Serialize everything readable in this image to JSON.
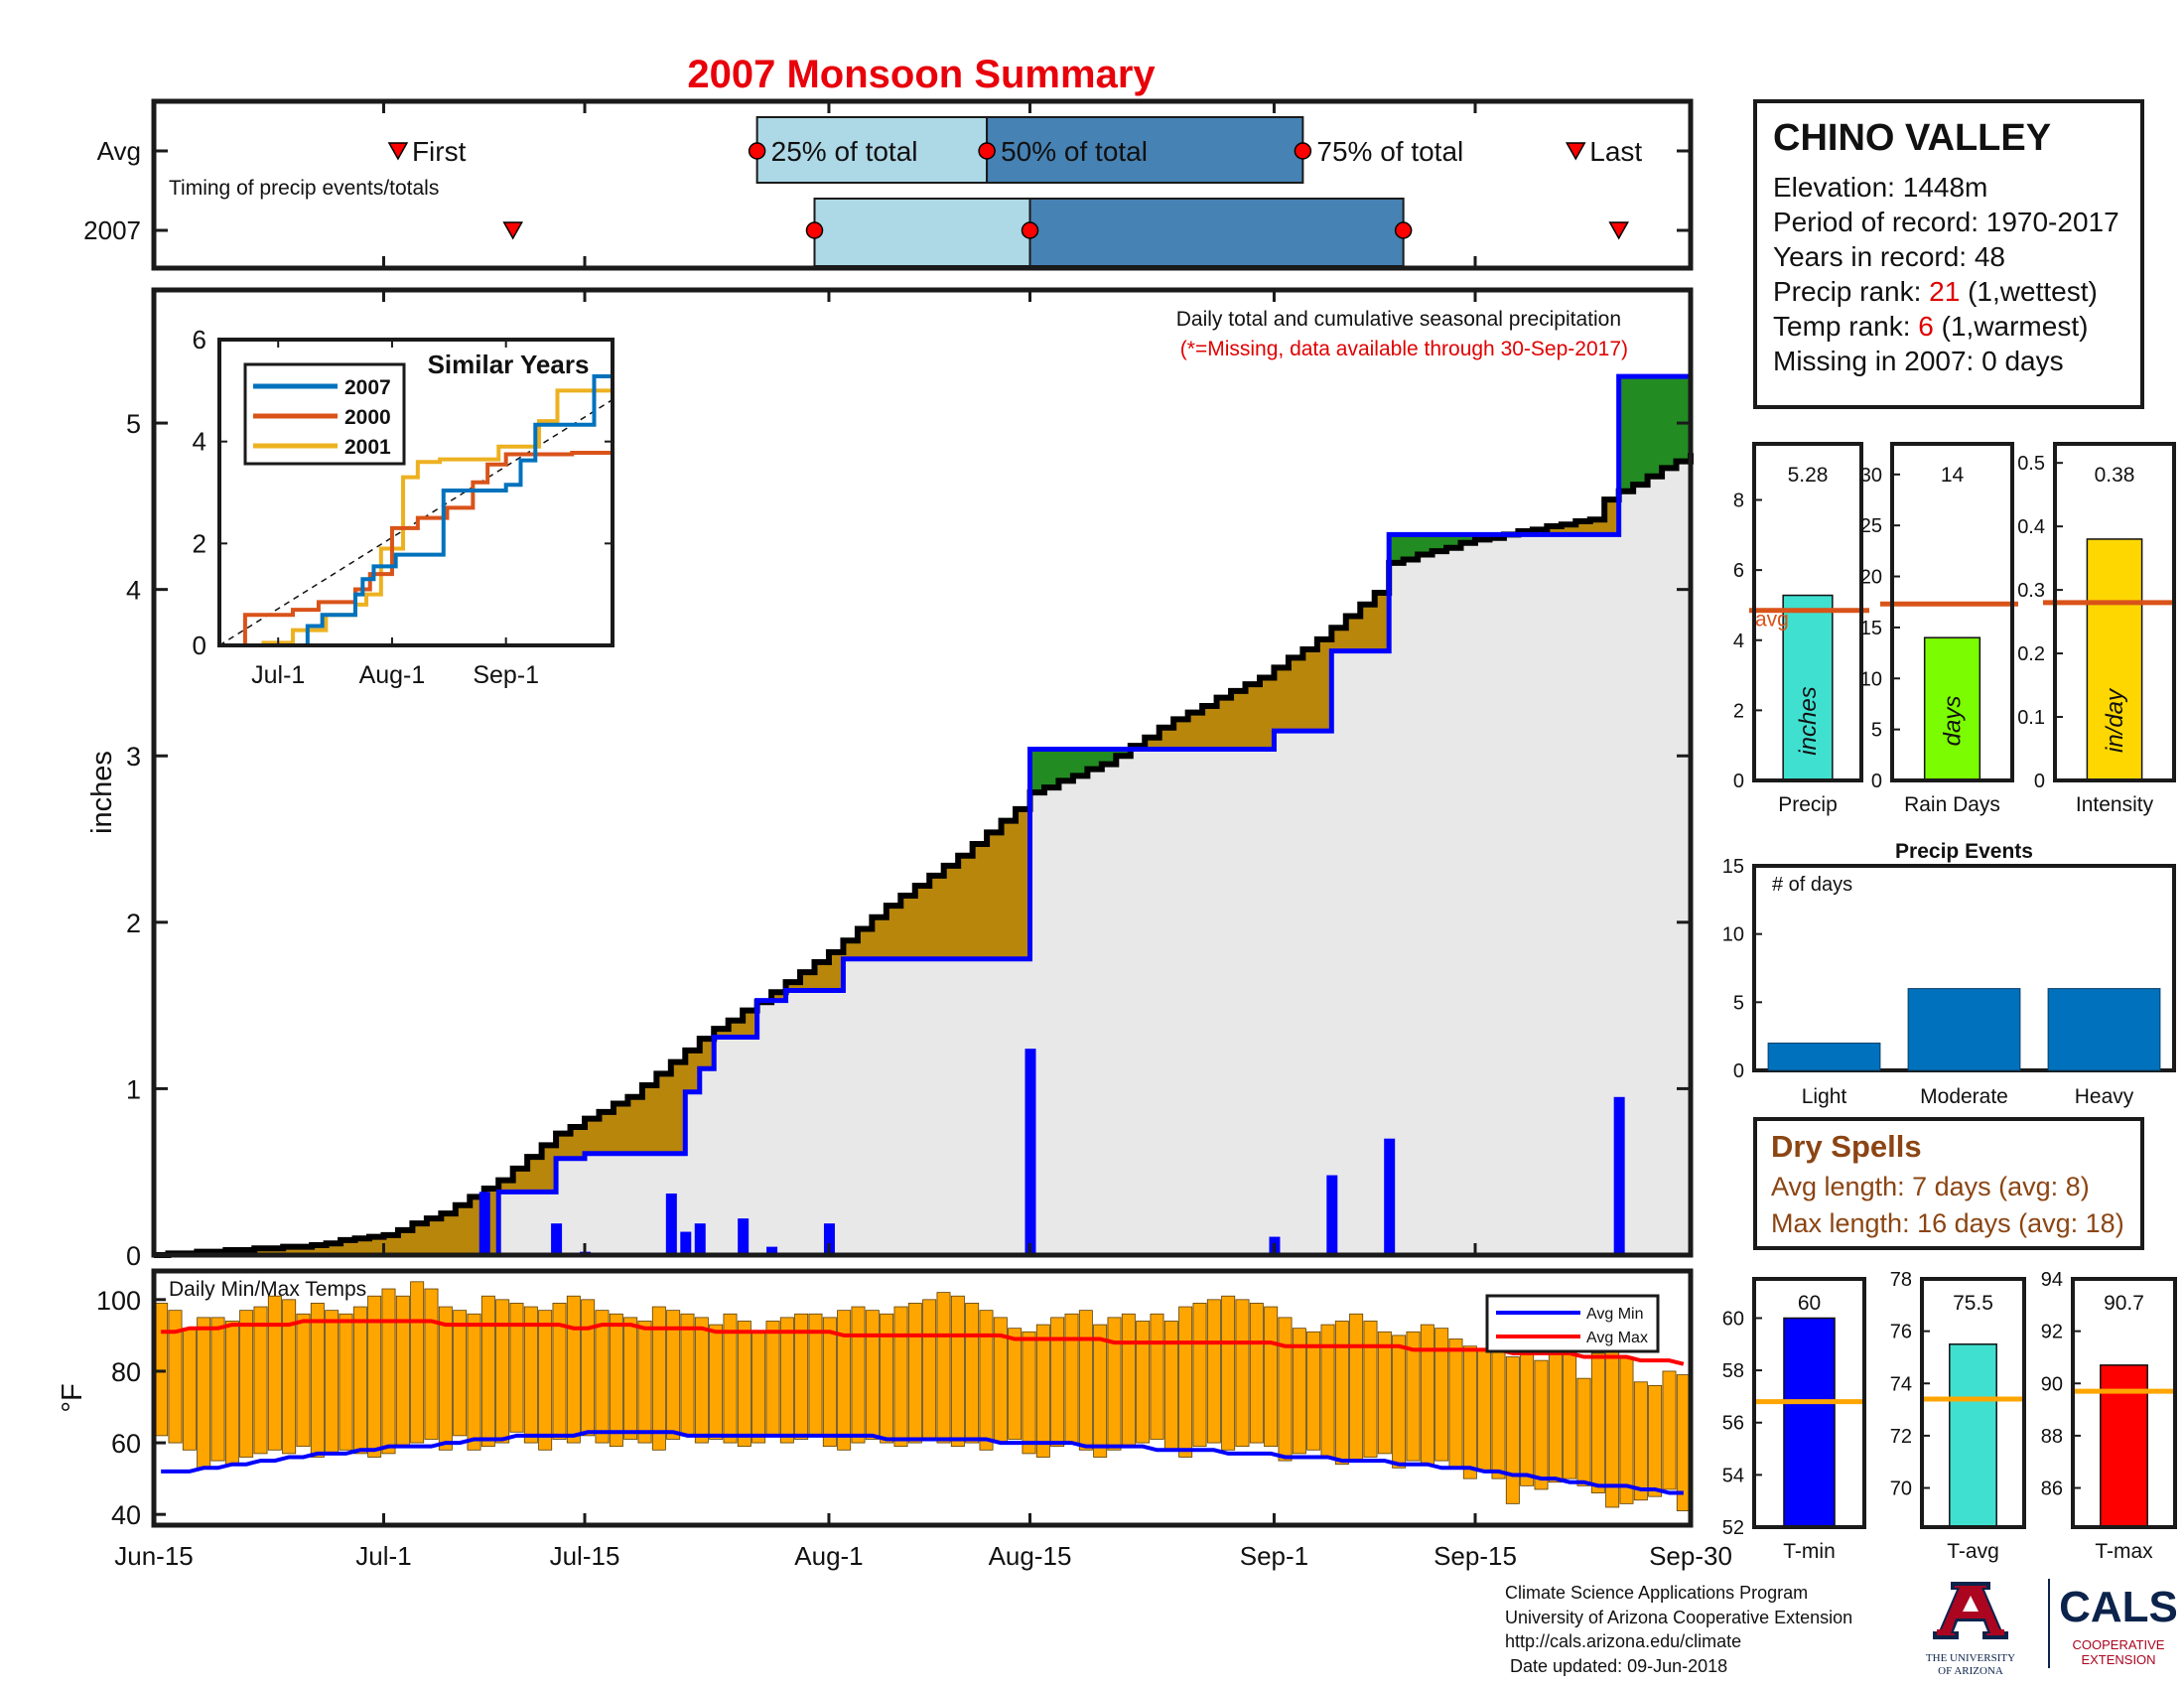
{
  "title": "2007 Monsoon Summary",
  "station": {
    "name": "CHINO VALLEY",
    "elevation": "Elevation: 1448m",
    "period": "Period of record: 1970-2017",
    "years": "Years in record: 48",
    "precip_rank_label": "Precip rank: ",
    "precip_rank_value": "21",
    "precip_rank_note": " (1,wettest)",
    "temp_rank_label": "Temp rank: ",
    "temp_rank_value": "6",
    "temp_rank_note": " (1,warmest)",
    "missing": "Missing in 2007: 0 days"
  },
  "dry_spells": {
    "title": "Dry Spells",
    "avg": "Avg length: 7 days (avg: 8)",
    "max": "Max length: 16 days (avg: 18)"
  },
  "footer": {
    "line1": "Climate Science Applications Program",
    "line2": "University of Arizona Cooperative Extension",
    "line3": "http://cals.arizona.edu/climate",
    "line4": " Date updated: 09-Jun-2018"
  },
  "logos": {
    "ua_line1": "THE UNIVERSITY",
    "ua_line2": "OF ARIZONA",
    "cals": "CALS",
    "cals_line1": "COOPERATIVE",
    "cals_line2": "EXTENSION"
  },
  "colors": {
    "title": "#e8000b",
    "cum2007": "#0000ff",
    "avg_cum": "#000000",
    "above_fill": "#228b22",
    "below_fill": "#b8860b",
    "daily_bar": "#0000ff",
    "temp_bar": "#ffa500",
    "avg_min": "#0000ff",
    "avg_max": "#ff0000",
    "series_2007": "#0072bd",
    "series_2000": "#d95319",
    "series_2001": "#edb120",
    "precip_bar": "#40e0d0",
    "raindays_bar": "#7cfc00",
    "intensity_bar": "#ffd700",
    "avg_line": "#d95319",
    "events_bar": "#0072bd",
    "tmin_bar": "#0000ff",
    "tavg_bar": "#40e0d0",
    "tmax_bar": "#ff0000",
    "temp_avg_line": "#ffa500"
  },
  "chart_data": [
    {
      "id": "timing",
      "type": "table",
      "rows": [
        "Avg",
        "2007"
      ],
      "caption": "Timing of precip events/totals",
      "labels": {
        "first": "First",
        "p25": "25% of total",
        "p50": "50% of total",
        "p75": "75% of total",
        "last": "Last"
      },
      "avg": {
        "first": "2007-07-02",
        "p25": "2007-07-27",
        "p50": "2007-08-12",
        "p75": "2007-09-03",
        "last": "2007-09-22"
      },
      "y2007": {
        "first": "2007-07-10",
        "p25": "2007-07-31",
        "p50": "2007-08-15",
        "p75": "2007-09-10",
        "last": "2007-09-25"
      }
    },
    {
      "id": "cumulative",
      "type": "area",
      "annotation1": "Daily total and cumulative seasonal precipitation",
      "annotation2": "(*=Missing, data available through 30-Sep-2017)",
      "ylabel": "inches",
      "ylim": [
        0,
        5.8
      ],
      "yticks": [
        0,
        1,
        2,
        3,
        4,
        5
      ],
      "xlim": [
        "2007-06-15",
        "2007-09-30"
      ],
      "xticks": [
        {
          "date": "2007-06-15",
          "label": "Jun-15"
        },
        {
          "date": "2007-07-01",
          "label": "Jul-1"
        },
        {
          "date": "2007-07-15",
          "label": "Jul-15"
        },
        {
          "date": "2007-08-01",
          "label": "Aug-1"
        },
        {
          "date": "2007-08-15",
          "label": "Aug-15"
        },
        {
          "date": "2007-09-01",
          "label": "Sep-1"
        },
        {
          "date": "2007-09-15",
          "label": "Sep-15"
        },
        {
          "date": "2007-09-30",
          "label": "Sep-30"
        }
      ],
      "daily_2007": [
        {
          "date": "2007-07-08",
          "value": 0.38
        },
        {
          "date": "2007-07-13",
          "value": 0.19
        },
        {
          "date": "2007-07-15",
          "value": 0.02
        },
        {
          "date": "2007-07-21",
          "value": 0.37
        },
        {
          "date": "2007-07-22",
          "value": 0.14
        },
        {
          "date": "2007-07-23",
          "value": 0.19
        },
        {
          "date": "2007-07-26",
          "value": 0.22
        },
        {
          "date": "2007-07-28",
          "value": 0.05
        },
        {
          "date": "2007-08-01",
          "value": 0.19
        },
        {
          "date": "2007-08-15",
          "value": 1.24
        },
        {
          "date": "2007-09-01",
          "value": 0.11
        },
        {
          "date": "2007-09-05",
          "value": 0.48
        },
        {
          "date": "2007-09-09",
          "value": 0.7
        },
        {
          "date": "2007-09-25",
          "value": 0.95
        }
      ],
      "cumulative_2007_steps": [
        {
          "date": "2007-06-15",
          "value": 0
        },
        {
          "date": "2007-07-09",
          "value": 0.38
        },
        {
          "date": "2007-07-13",
          "value": 0.58
        },
        {
          "date": "2007-07-15",
          "value": 0.61
        },
        {
          "date": "2007-07-22",
          "value": 0.98
        },
        {
          "date": "2007-07-23",
          "value": 1.12
        },
        {
          "date": "2007-07-24",
          "value": 1.31
        },
        {
          "date": "2007-07-27",
          "value": 1.53
        },
        {
          "date": "2007-07-29",
          "value": 1.59
        },
        {
          "date": "2007-08-02",
          "value": 1.78
        },
        {
          "date": "2007-08-15",
          "value": 3.04
        },
        {
          "date": "2007-09-01",
          "value": 3.15
        },
        {
          "date": "2007-09-05",
          "value": 3.63
        },
        {
          "date": "2007-09-09",
          "value": 4.33
        },
        {
          "date": "2007-09-25",
          "value": 5.28
        }
      ],
      "avg_cumulative": [
        {
          "date": "2007-06-15",
          "value": 0.0
        },
        {
          "date": "2007-06-25",
          "value": 0.05
        },
        {
          "date": "2007-07-01",
          "value": 0.12
        },
        {
          "date": "2007-07-05",
          "value": 0.25
        },
        {
          "date": "2007-07-09",
          "value": 0.45
        },
        {
          "date": "2007-07-13",
          "value": 0.73
        },
        {
          "date": "2007-07-18",
          "value": 0.95
        },
        {
          "date": "2007-07-23",
          "value": 1.3
        },
        {
          "date": "2007-07-28",
          "value": 1.58
        },
        {
          "date": "2007-08-01",
          "value": 1.82
        },
        {
          "date": "2007-08-05",
          "value": 2.1
        },
        {
          "date": "2007-08-10",
          "value": 2.4
        },
        {
          "date": "2007-08-14",
          "value": 2.68
        },
        {
          "date": "2007-08-15",
          "value": 2.78
        },
        {
          "date": "2007-08-20",
          "value": 2.95
        },
        {
          "date": "2007-08-25",
          "value": 3.22
        },
        {
          "date": "2007-08-31",
          "value": 3.47
        },
        {
          "date": "2007-09-04",
          "value": 3.7
        },
        {
          "date": "2007-09-08",
          "value": 3.98
        },
        {
          "date": "2007-09-09",
          "value": 4.16
        },
        {
          "date": "2007-09-15",
          "value": 4.3
        },
        {
          "date": "2007-09-23",
          "value": 4.42
        },
        {
          "date": "2007-09-24",
          "value": 4.54
        },
        {
          "date": "2007-09-30",
          "value": 4.82
        }
      ]
    },
    {
      "id": "similar_years",
      "type": "line",
      "title": "Similar Years",
      "ylim": [
        0,
        6
      ],
      "yticks": [
        0,
        2,
        4,
        6
      ],
      "xticks": [
        {
          "date": "2007-07-01",
          "label": "Jul-1"
        },
        {
          "date": "2007-08-01",
          "label": "Aug-1"
        },
        {
          "date": "2007-09-01",
          "label": "Sep-1"
        }
      ],
      "series": [
        {
          "name": "2007",
          "points": [
            [
              "2007-06-15",
              0
            ],
            [
              "2007-07-09",
              0.38
            ],
            [
              "2007-07-13",
              0.6
            ],
            [
              "2007-07-22",
              1.0
            ],
            [
              "2007-07-24",
              1.3
            ],
            [
              "2007-07-27",
              1.55
            ],
            [
              "2007-08-02",
              1.78
            ],
            [
              "2007-08-15",
              3.04
            ],
            [
              "2007-09-01",
              3.15
            ],
            [
              "2007-09-05",
              3.63
            ],
            [
              "2007-09-09",
              4.33
            ],
            [
              "2007-09-25",
              5.28
            ],
            [
              "2007-09-30",
              5.28
            ]
          ]
        },
        {
          "name": "2000",
          "points": [
            [
              "2007-06-15",
              0
            ],
            [
              "2007-06-22",
              0.6
            ],
            [
              "2007-07-05",
              0.7
            ],
            [
              "2007-07-12",
              0.85
            ],
            [
              "2007-07-22",
              1.1
            ],
            [
              "2007-07-26",
              1.4
            ],
            [
              "2007-08-01",
              2.3
            ],
            [
              "2007-08-08",
              2.5
            ],
            [
              "2007-08-16",
              2.7
            ],
            [
              "2007-08-23",
              3.2
            ],
            [
              "2007-08-27",
              3.55
            ],
            [
              "2007-09-01",
              3.75
            ],
            [
              "2007-09-15",
              3.75
            ],
            [
              "2007-09-19",
              3.78
            ],
            [
              "2007-09-30",
              3.8
            ]
          ]
        },
        {
          "name": "2001",
          "points": [
            [
              "2007-06-15",
              0
            ],
            [
              "2007-06-27",
              0.05
            ],
            [
              "2007-07-05",
              0.3
            ],
            [
              "2007-07-14",
              0.6
            ],
            [
              "2007-07-22",
              0.8
            ],
            [
              "2007-07-25",
              1.0
            ],
            [
              "2007-07-29",
              1.9
            ],
            [
              "2007-08-04",
              3.3
            ],
            [
              "2007-08-08",
              3.6
            ],
            [
              "2007-08-14",
              3.65
            ],
            [
              "2007-08-30",
              3.9
            ],
            [
              "2007-09-10",
              4.4
            ],
            [
              "2007-09-15",
              5.0
            ],
            [
              "2007-09-30",
              5.0
            ]
          ]
        }
      ]
    },
    {
      "id": "temps",
      "type": "bar",
      "title": "Daily Min/Max Temps",
      "ylabel": "°F",
      "ylim": [
        37,
        108
      ],
      "yticks": [
        40,
        60,
        80,
        100
      ],
      "legend": [
        "Avg Min",
        "Avg Max"
      ],
      "start": "2007-06-15",
      "tmax": [
        99,
        97,
        92,
        95,
        95,
        94,
        97,
        98,
        101,
        100,
        96,
        99,
        97,
        96,
        98,
        101,
        103,
        101,
        105,
        103,
        98,
        97,
        96,
        101,
        100,
        99,
        98,
        97,
        99,
        101,
        100,
        97,
        96,
        95,
        94,
        98,
        97,
        96,
        95,
        93,
        96,
        94,
        91,
        94,
        95,
        96,
        96,
        95,
        97,
        98,
        97,
        96,
        98,
        99,
        100,
        102,
        101,
        99,
        97,
        95,
        92,
        91,
        93,
        95,
        96,
        97,
        93,
        95,
        96,
        94,
        96,
        94,
        98,
        99,
        100,
        101,
        100,
        99,
        98,
        95,
        92,
        91,
        93,
        94,
        96,
        94,
        91,
        90,
        91,
        93,
        92,
        89,
        87,
        86,
        88,
        84,
        90,
        83,
        88,
        85,
        78,
        85,
        86,
        84,
        77,
        76,
        80,
        79
      ],
      "tmin": [
        62,
        60,
        58,
        53,
        55,
        54,
        56,
        57,
        58,
        57,
        59,
        56,
        57,
        58,
        57,
        56,
        57,
        59,
        60,
        61,
        58,
        62,
        58,
        59,
        60,
        63,
        60,
        58,
        61,
        60,
        62,
        60,
        59,
        61,
        60,
        58,
        61,
        62,
        60,
        61,
        60,
        59,
        60,
        62,
        60,
        61,
        62,
        59,
        58,
        60,
        61,
        60,
        59,
        60,
        61,
        60,
        59,
        60,
        58,
        60,
        61,
        57,
        56,
        59,
        60,
        58,
        56,
        58,
        59,
        60,
        61,
        58,
        56,
        59,
        60,
        58,
        59,
        60,
        59,
        55,
        57,
        58,
        56,
        54,
        55,
        56,
        57,
        53,
        55,
        54,
        55,
        53,
        50,
        52,
        50,
        43,
        48,
        47,
        49,
        50,
        48,
        46,
        42,
        43,
        44,
        45,
        47,
        41
      ],
      "avg_max": [
        91,
        91,
        92,
        92,
        92,
        93,
        93,
        93,
        93,
        93,
        94,
        94,
        94,
        94,
        94,
        94,
        94,
        94,
        94,
        94,
        93,
        93,
        93,
        93,
        93,
        93,
        93,
        93,
        93,
        92,
        92,
        93,
        93,
        93,
        92,
        92,
        92,
        92,
        92,
        91,
        91,
        91,
        91,
        91,
        91,
        91,
        91,
        91,
        90,
        90,
        90,
        90,
        90,
        90,
        90,
        90,
        90,
        90,
        90,
        90,
        89,
        89,
        89,
        89,
        89,
        89,
        89,
        88,
        88,
        88,
        88,
        88,
        88,
        88,
        88,
        88,
        88,
        88,
        88,
        87,
        87,
        87,
        87,
        87,
        87,
        87,
        87,
        87,
        86,
        86,
        86,
        86,
        86,
        86,
        86,
        85,
        85,
        85,
        85,
        85,
        84,
        84,
        84,
        84,
        83,
        83,
        83,
        82
      ],
      "avg_min": [
        52,
        52,
        52,
        53,
        53,
        54,
        54,
        55,
        55,
        56,
        56,
        57,
        57,
        57,
        58,
        58,
        59,
        59,
        59,
        59,
        60,
        60,
        61,
        61,
        61,
        62,
        62,
        62,
        62,
        62,
        63,
        63,
        63,
        63,
        63,
        63,
        63,
        62,
        62,
        62,
        62,
        62,
        62,
        62,
        62,
        62,
        62,
        62,
        62,
        62,
        62,
        61,
        61,
        61,
        61,
        61,
        61,
        61,
        61,
        60,
        60,
        60,
        60,
        60,
        60,
        59,
        59,
        59,
        59,
        59,
        58,
        58,
        58,
        58,
        58,
        57,
        57,
        57,
        57,
        56,
        56,
        56,
        56,
        55,
        55,
        55,
        55,
        54,
        54,
        54,
        53,
        53,
        53,
        52,
        52,
        51,
        51,
        50,
        50,
        49,
        49,
        48,
        48,
        48,
        47,
        47,
        46,
        46
      ]
    },
    {
      "id": "precip_total",
      "type": "bar",
      "xlabel": "Precip",
      "bar_label": "inches",
      "value": 5.28,
      "value_label": "5.28",
      "avg": 4.85,
      "avg_label": "avg",
      "ylim": [
        0,
        9.6
      ],
      "yticks": [
        0,
        2,
        4,
        6,
        8
      ]
    },
    {
      "id": "rain_days",
      "type": "bar",
      "xlabel": "Rain Days",
      "bar_label": "days",
      "value": 14,
      "value_label": "14",
      "avg": 17.3,
      "ylim": [
        0,
        33
      ],
      "yticks": [
        0,
        5,
        10,
        15,
        20,
        25,
        30
      ]
    },
    {
      "id": "intensity",
      "type": "bar",
      "xlabel": "Intensity",
      "bar_label": "in/day",
      "value": 0.38,
      "value_label": "0.38",
      "avg": 0.28,
      "ylim": [
        0,
        0.53
      ],
      "yticks": [
        0,
        0.1,
        0.2,
        0.3,
        0.4,
        0.5
      ]
    },
    {
      "id": "precip_events",
      "type": "bar",
      "title": "Precip Events",
      "annotation": "# of days",
      "categories": [
        "Light",
        "Moderate",
        "Heavy"
      ],
      "values": [
        2,
        6,
        6
      ],
      "ylim": [
        0,
        15
      ],
      "yticks": [
        0,
        5,
        10,
        15
      ]
    },
    {
      "id": "t_min",
      "type": "bar",
      "xlabel": "T-min",
      "value": 60,
      "value_label": "60",
      "avg": 56.8,
      "ylim": [
        52,
        61.5
      ],
      "yticks": [
        52,
        54,
        56,
        58,
        60
      ]
    },
    {
      "id": "t_avg",
      "type": "bar",
      "xlabel": "T-avg",
      "value": 75.5,
      "value_label": "75.5",
      "avg": 73.4,
      "ylim": [
        68.5,
        78
      ],
      "yticks": [
        70,
        72,
        74,
        76,
        78
      ]
    },
    {
      "id": "t_max",
      "type": "bar",
      "xlabel": "T-max",
      "value": 90.7,
      "value_label": "90.7",
      "avg": 89.7,
      "ylim": [
        84.5,
        94
      ],
      "yticks": [
        86,
        88,
        90,
        92,
        94
      ]
    }
  ]
}
